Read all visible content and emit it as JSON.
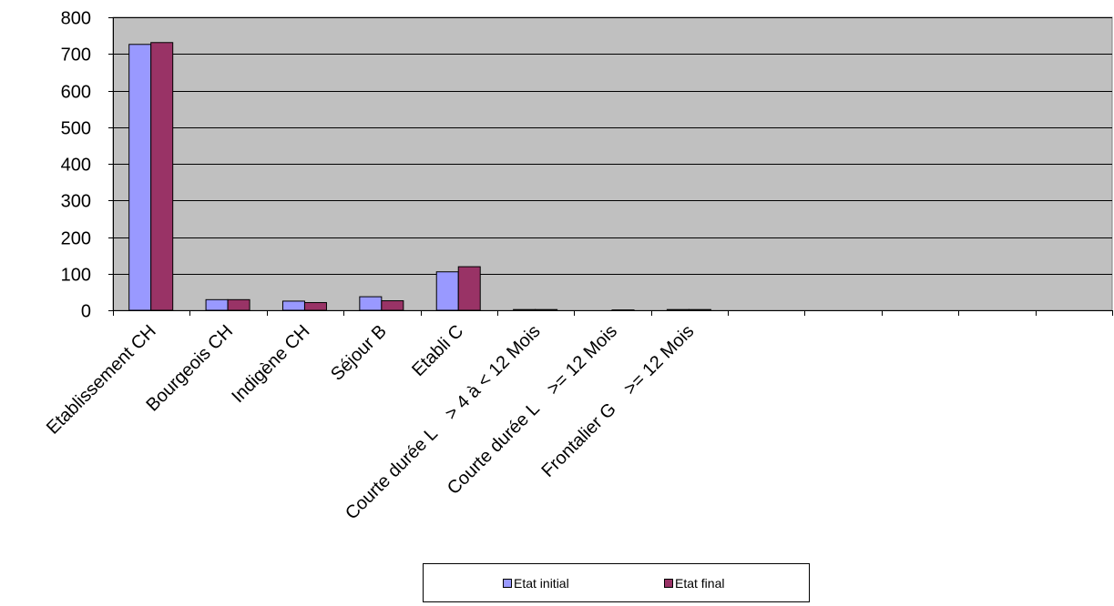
{
  "chart_data": {
    "type": "bar",
    "title": "",
    "xlabel": "",
    "ylabel": "",
    "categories": [
      "Etablissement CH",
      "Bourgeois CH",
      "Indigène CH",
      "Séjour B",
      "Etabli C",
      "Courte durée L    > 4 à < 12 Mois",
      "Courte durée L    >= 12 Mois",
      "Frontalier G    >= 12 Mois",
      "",
      "",
      "",
      "",
      ""
    ],
    "series": [
      {
        "name": "Etat initial",
        "color": "#9999ff",
        "values": [
          726,
          29,
          25,
          37,
          105,
          2,
          0,
          2,
          0,
          0,
          0,
          0,
          0
        ]
      },
      {
        "name": "Etat final",
        "color": "#993366",
        "values": [
          731,
          29,
          21,
          26,
          119,
          2,
          1,
          2,
          0,
          0,
          0,
          0,
          0
        ]
      }
    ],
    "ylim": [
      0,
      800
    ],
    "yticks": [
      0,
      100,
      200,
      300,
      400,
      500,
      600,
      700,
      800
    ],
    "plot_background": "#c0c0c0",
    "grid": true,
    "legend_position": "bottom"
  }
}
